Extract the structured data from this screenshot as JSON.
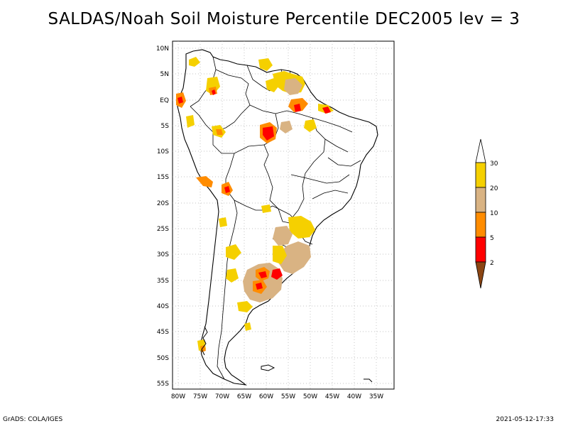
{
  "title": "SALDAS/Noah Soil Moisture Percentile DEC2005 lev = 3",
  "lat_labels": [
    "10N",
    "5N",
    "EQ",
    "5S",
    "10S",
    "15S",
    "20S",
    "25S",
    "30S",
    "35S",
    "40S",
    "45S",
    "50S",
    "55S"
  ],
  "lon_labels": [
    "80W",
    "75W",
    "70W",
    "65W",
    "60W",
    "55W",
    "50W",
    "45W",
    "40W",
    "35W"
  ],
  "legend": {
    "labels": [
      "30",
      "20",
      "10",
      "5",
      "2"
    ],
    "colors": {
      "above_30": "#ffffff",
      "20_30": "#f5d000",
      "10_20": "#d9b383",
      "5_10": "#ff8c00",
      "2_5": "#ff0000",
      "below_2": "#8b4513"
    }
  },
  "footer": {
    "left": "GrADS: COLA/IGES",
    "right": "2021-05-12-17:33"
  }
}
